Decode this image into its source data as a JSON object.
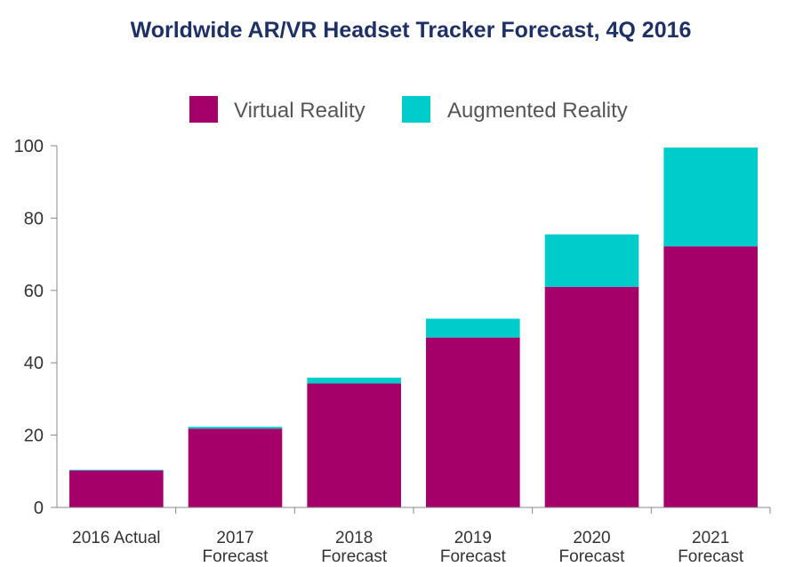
{
  "chart_data": {
    "type": "bar",
    "stacked": true,
    "title": "Worldwide AR/VR Headset Tracker Forecast, 4Q 2016",
    "xlabel": "",
    "ylabel": "",
    "ylim": [
      0,
      100
    ],
    "yticks": [
      0,
      20,
      40,
      60,
      80,
      100
    ],
    "grid": false,
    "legend": "top-center",
    "categories": [
      [
        "2016 Actual"
      ],
      [
        "2017",
        "Forecast"
      ],
      [
        "2018",
        "Forecast"
      ],
      [
        "2019",
        "Forecast"
      ],
      [
        "2020",
        "Forecast"
      ],
      [
        "2021",
        "Forecast"
      ]
    ],
    "series": [
      {
        "name": "Virtual Reality",
        "color": "#a5006a",
        "values": [
          10.2,
          21.8,
          34.3,
          47.0,
          61.0,
          72.2
        ]
      },
      {
        "name": "Augmented Reality",
        "color": "#00cccc",
        "values": [
          0.2,
          0.5,
          1.6,
          5.2,
          14.5,
          27.3
        ]
      }
    ]
  }
}
